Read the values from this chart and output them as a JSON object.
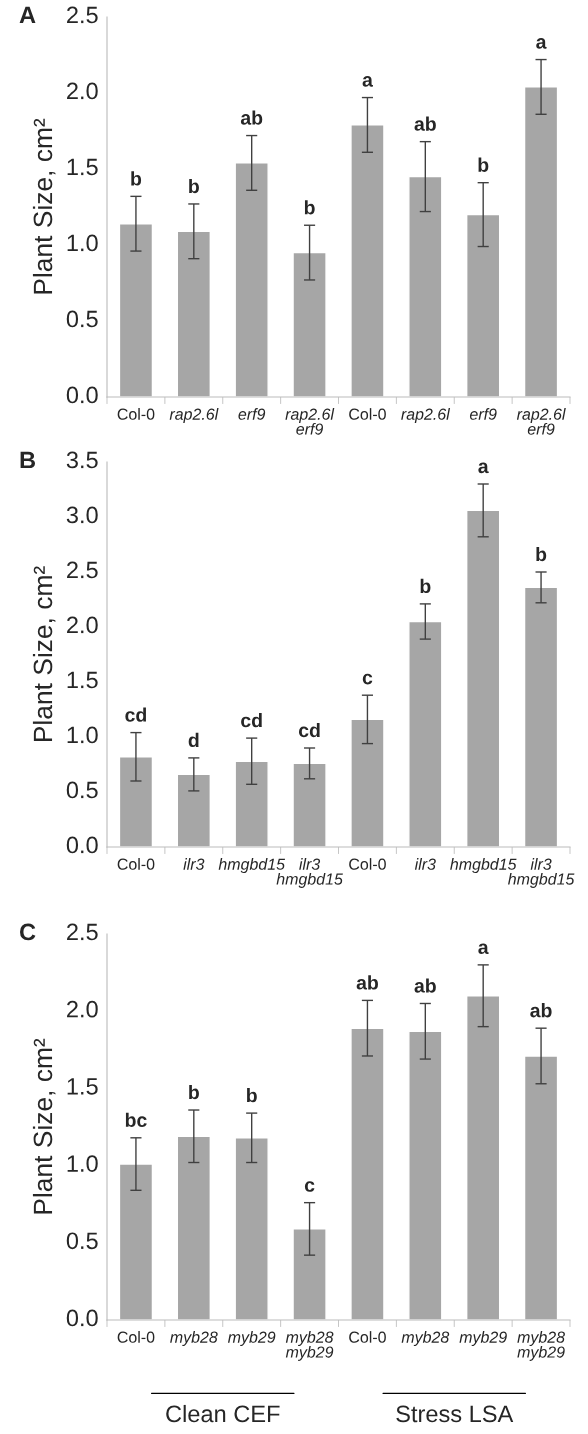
{
  "chart_data": [
    {
      "type": "bar",
      "title": "A",
      "ylabel": "Plant Size, cm²",
      "categories": [
        "Col-0",
        "rap2.6l",
        "erf9",
        "rap2.6l\nerf9",
        "Col-0",
        "rap2.6l",
        "erf9",
        "rap2.6l\nerf9"
      ],
      "values": [
        1.14,
        1.09,
        1.54,
        0.95,
        1.79,
        1.45,
        1.2,
        2.04
      ],
      "errors": [
        0.18,
        0.18,
        0.18,
        0.18,
        0.18,
        0.23,
        0.21,
        0.18
      ],
      "value_labels": [
        "b",
        "b",
        "ab",
        "b",
        "a",
        "ab",
        "b",
        "a"
      ],
      "color": "#a6a6a6",
      "ylim": [
        0,
        2.5
      ],
      "yticks": [
        {
          "value": 0,
          "label": "0.0"
        },
        0.5,
        {
          "value": 1,
          "label": "1.0"
        },
        1.5,
        {
          "value": 2,
          "label": "2.0"
        },
        2.5
      ],
      "grid": false
    },
    {
      "type": "bar",
      "title": "B",
      "ylabel": "Plant Size, cm²",
      "categories": [
        "Col-0",
        "ilr3",
        "hmgbd15",
        "ilr3\nhmgbd15",
        "Col-0",
        "ilr3",
        "hmgbd15",
        "ilr3\nhmgbd15"
      ],
      "values": [
        0.82,
        0.66,
        0.78,
        0.76,
        1.16,
        2.05,
        3.06,
        2.36
      ],
      "errors": [
        0.22,
        0.15,
        0.21,
        0.14,
        0.22,
        0.16,
        0.24,
        0.14
      ],
      "value_labels": [
        "cd",
        "d",
        "cd",
        "cd",
        "c",
        "b",
        "a",
        "b"
      ],
      "color": "#a6a6a6",
      "ylim": [
        0,
        3.5
      ],
      "yticks": [
        {
          "value": 0,
          "label": "0.0"
        },
        0.5,
        {
          "value": 1,
          "label": "1.0"
        },
        1.5,
        {
          "value": 2,
          "label": "2.0"
        },
        2.5,
        {
          "value": 3,
          "label": "3.0"
        },
        3.5
      ],
      "grid": false
    },
    {
      "type": "bar",
      "title": "C",
      "ylabel": "Plant Size, cm²",
      "categories": [
        "Col-0",
        "myb28",
        "myb29",
        "myb28\nmyb29",
        "Col-0",
        "myb28",
        "myb29",
        "myb28\nmyb29"
      ],
      "values": [
        1.01,
        1.19,
        1.18,
        0.59,
        1.89,
        1.87,
        2.1,
        1.71
      ],
      "errors": [
        0.17,
        0.17,
        0.16,
        0.17,
        0.18,
        0.18,
        0.2,
        0.18
      ],
      "value_labels": [
        "bc",
        "b",
        "b",
        "c",
        "ab",
        "ab",
        "a",
        "ab"
      ],
      "color": "#a6a6a6",
      "ylim": [
        0,
        2.5
      ],
      "yticks": [
        {
          "value": 0,
          "label": "0.0"
        },
        0.5,
        {
          "value": 1,
          "label": "1.0"
        },
        1.5,
        {
          "value": 2,
          "label": "2.0"
        },
        2.5
      ],
      "grid": false,
      "annotations": [
        "Clean CEF",
        "Stress LSA"
      ]
    }
  ]
}
